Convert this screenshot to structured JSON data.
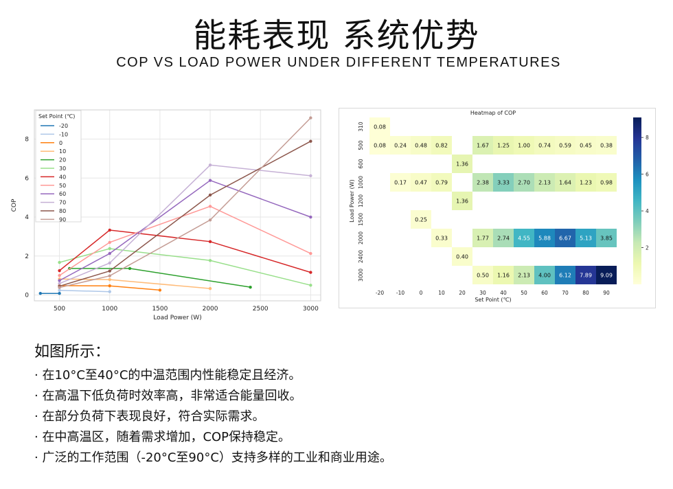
{
  "header": {
    "title": "能耗表现 系统优势",
    "subtitle": "COP VS LOAD POWER UNDER DIFFERENT TEMPERATURES"
  },
  "chart_data": [
    {
      "type": "line",
      "xlabel": "Load Power (W)",
      "ylabel": "COP",
      "xlim": [
        250,
        3100
      ],
      "ylim": [
        -0.3,
        9.5
      ],
      "x_ticks": [
        500,
        1000,
        1500,
        2000,
        2500,
        3000
      ],
      "y_ticks": [
        0,
        2,
        4,
        6,
        8
      ],
      "grid": true,
      "legend_title": "Set Point (℃)",
      "legend_position": "top-left",
      "series": [
        {
          "name": "-20",
          "color": "#1f77b4",
          "points": [
            [
              310,
              0.08
            ],
            [
              500,
              0.08
            ]
          ]
        },
        {
          "name": "-10",
          "color": "#aec7e8",
          "points": [
            [
              500,
              0.24
            ],
            [
              1000,
              0.17
            ]
          ]
        },
        {
          "name": "0",
          "color": "#ff7f0e",
          "points": [
            [
              500,
              0.48
            ],
            [
              1000,
              0.47
            ],
            [
              1500,
              0.25
            ]
          ]
        },
        {
          "name": "10",
          "color": "#ffbb78",
          "points": [
            [
              500,
              0.82
            ],
            [
              1000,
              0.79
            ],
            [
              2000,
              0.33
            ]
          ]
        },
        {
          "name": "20",
          "color": "#2ca02c",
          "points": [
            [
              600,
              1.36
            ],
            [
              1200,
              1.36
            ],
            [
              2400,
              0.4
            ]
          ]
        },
        {
          "name": "30",
          "color": "#98df8a",
          "points": [
            [
              500,
              1.67
            ],
            [
              1000,
              2.38
            ],
            [
              2000,
              1.77
            ],
            [
              3000,
              0.5
            ]
          ]
        },
        {
          "name": "40",
          "color": "#d62728",
          "points": [
            [
              500,
              1.25
            ],
            [
              1000,
              3.33
            ],
            [
              2000,
              2.74
            ],
            [
              3000,
              1.16
            ]
          ]
        },
        {
          "name": "50",
          "color": "#ff9896",
          "points": [
            [
              500,
              1.0
            ],
            [
              1000,
              2.7
            ],
            [
              2000,
              4.55
            ],
            [
              3000,
              2.13
            ]
          ]
        },
        {
          "name": "60",
          "color": "#9467bd",
          "points": [
            [
              500,
              0.74
            ],
            [
              1000,
              2.13
            ],
            [
              2000,
              5.88
            ],
            [
              3000,
              4.0
            ]
          ]
        },
        {
          "name": "70",
          "color": "#c5b0d5",
          "points": [
            [
              500,
              0.59
            ],
            [
              1000,
              1.64
            ],
            [
              2000,
              6.67
            ],
            [
              3000,
              6.12
            ]
          ]
        },
        {
          "name": "80",
          "color": "#8c564b",
          "points": [
            [
              500,
              0.45
            ],
            [
              1000,
              1.23
            ],
            [
              2000,
              5.13
            ],
            [
              3000,
              7.89
            ]
          ]
        },
        {
          "name": "90",
          "color": "#c49c94",
          "points": [
            [
              500,
              0.38
            ],
            [
              1000,
              0.98
            ],
            [
              2000,
              3.85
            ],
            [
              3000,
              9.09
            ]
          ]
        }
      ]
    },
    {
      "type": "heatmap",
      "title": "Heatmap of COP",
      "xlabel": "Set Point (℃)",
      "ylabel": "Load Power (W)",
      "x_categories": [
        "-20",
        "-10",
        "0",
        "10",
        "20",
        "30",
        "40",
        "50",
        "60",
        "70",
        "80",
        "90"
      ],
      "y_categories": [
        "310",
        "500",
        "600",
        "1000",
        "1200",
        "1500",
        "2000",
        "2400",
        "3000"
      ],
      "values": [
        [
          0.08,
          null,
          null,
          null,
          null,
          null,
          null,
          null,
          null,
          null,
          null,
          null
        ],
        [
          0.08,
          0.24,
          0.48,
          0.82,
          null,
          1.67,
          1.25,
          1.0,
          0.74,
          0.59,
          0.45,
          0.38
        ],
        [
          null,
          null,
          null,
          null,
          1.36,
          null,
          null,
          null,
          null,
          null,
          null,
          null
        ],
        [
          null,
          0.17,
          0.47,
          0.79,
          null,
          2.38,
          3.33,
          2.7,
          2.13,
          1.64,
          1.23,
          0.98
        ],
        [
          null,
          null,
          null,
          null,
          1.36,
          null,
          null,
          null,
          null,
          null,
          null,
          null
        ],
        [
          null,
          null,
          0.25,
          null,
          null,
          null,
          null,
          null,
          null,
          null,
          null,
          null
        ],
        [
          null,
          null,
          null,
          0.33,
          null,
          1.77,
          2.74,
          4.55,
          5.88,
          6.67,
          5.13,
          3.85
        ],
        [
          null,
          null,
          null,
          null,
          0.4,
          null,
          null,
          null,
          null,
          null,
          null,
          null
        ],
        [
          null,
          null,
          null,
          null,
          null,
          0.5,
          1.16,
          2.13,
          4.0,
          6.12,
          7.89,
          9.09
        ]
      ],
      "colorbar_range": [
        0,
        9.09
      ],
      "colorbar_ticks": [
        2,
        4,
        6,
        8
      ],
      "colormap": "YlGnBu"
    }
  ],
  "notes": {
    "heading": "如图所示：",
    "bullets": [
      "· 在10°C至40°C的中温范围内性能稳定且经济。",
      "· 在高温下低负荷时效率高，非常适合能量回收。",
      "· 在部分负荷下表现良好，符合实际需求。",
      "· 在中高温区，随着需求增加，COP保持稳定。",
      "· 广泛的工作范围（-20°C至90°C）支持多样的工业和商业用途。"
    ]
  }
}
